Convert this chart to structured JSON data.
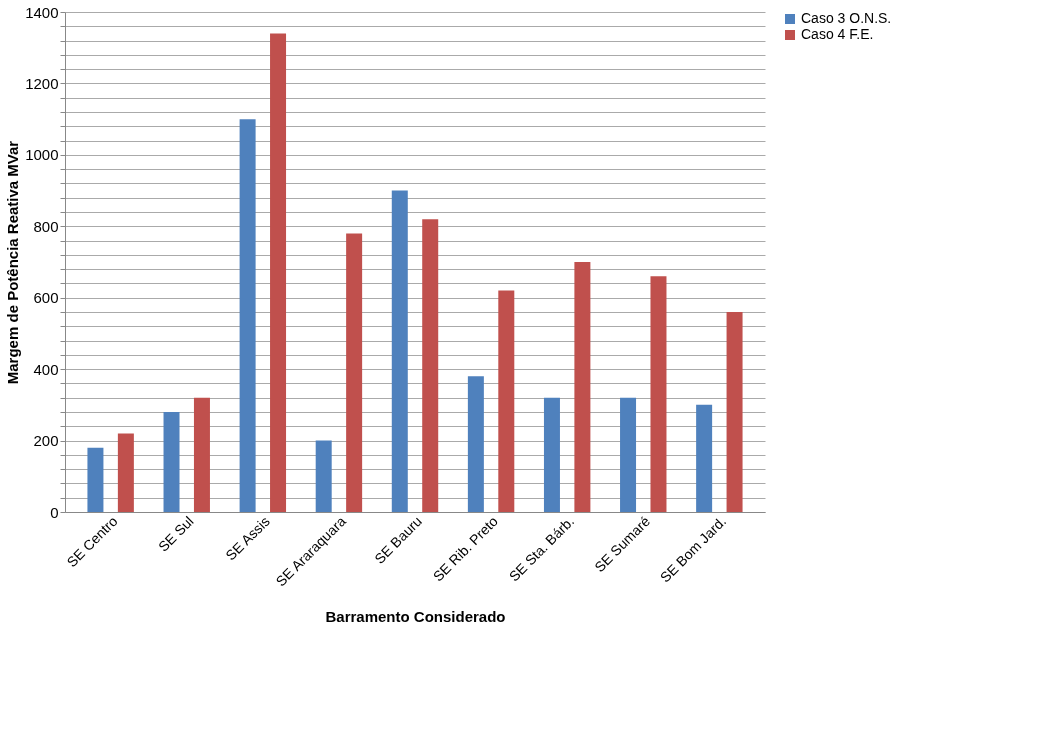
{
  "chart_data": {
    "type": "bar",
    "xlabel": "Barramento Considerado",
    "ylabel": "Margem de Potência Reativa MVar",
    "categories": [
      "SE Centro",
      "SE Sul",
      "SE Assis",
      "SE Araraquara",
      "SE Bauru",
      "SE Rib. Preto",
      "SE Sta. Bárb.",
      "SE Sumaré",
      "SE Bom Jard."
    ],
    "series": [
      {
        "name": "Caso 3 O.N.S.",
        "color": "#4f81bd",
        "values": [
          180,
          280,
          1100,
          200,
          900,
          380,
          320,
          320,
          300
        ]
      },
      {
        "name": "Caso 4 F.E.",
        "color": "#c0504d",
        "values": [
          220,
          320,
          1340,
          780,
          820,
          620,
          700,
          660,
          560
        ]
      }
    ],
    "ylim": [
      0,
      1400
    ],
    "yticks": [
      0,
      {
        "value": 40,
        "label": null
      },
      {
        "value": 80,
        "label": null
      },
      {
        "value": 120,
        "label": null
      },
      {
        "value": 160,
        "label": null
      },
      200,
      {
        "value": 240,
        "label": null
      },
      {
        "value": 280,
        "label": null
      },
      {
        "value": 320,
        "label": null
      },
      {
        "value": 360,
        "label": null
      },
      400,
      {
        "value": 440,
        "label": null
      },
      {
        "value": 480,
        "label": null
      },
      {
        "value": 520,
        "label": null
      },
      {
        "value": 560,
        "label": null
      },
      600,
      {
        "value": 640,
        "label": null
      },
      {
        "value": 680,
        "label": null
      },
      {
        "value": 720,
        "label": null
      },
      {
        "value": 760,
        "label": null
      },
      800,
      {
        "value": 840,
        "label": null
      },
      {
        "value": 880,
        "label": null
      },
      {
        "value": 920,
        "label": null
      },
      {
        "value": 960,
        "label": null
      },
      1000,
      {
        "value": 1040,
        "label": null
      },
      {
        "value": 1080,
        "label": null
      },
      {
        "value": 1120,
        "label": null
      },
      {
        "value": 1160,
        "label": null
      },
      1200,
      {
        "value": 1240,
        "label": null
      },
      {
        "value": 1280,
        "label": null
      },
      {
        "value": 1320,
        "label": null
      },
      {
        "value": 1360,
        "label": null
      },
      1400
    ],
    "grid": "y",
    "legend": "right"
  }
}
